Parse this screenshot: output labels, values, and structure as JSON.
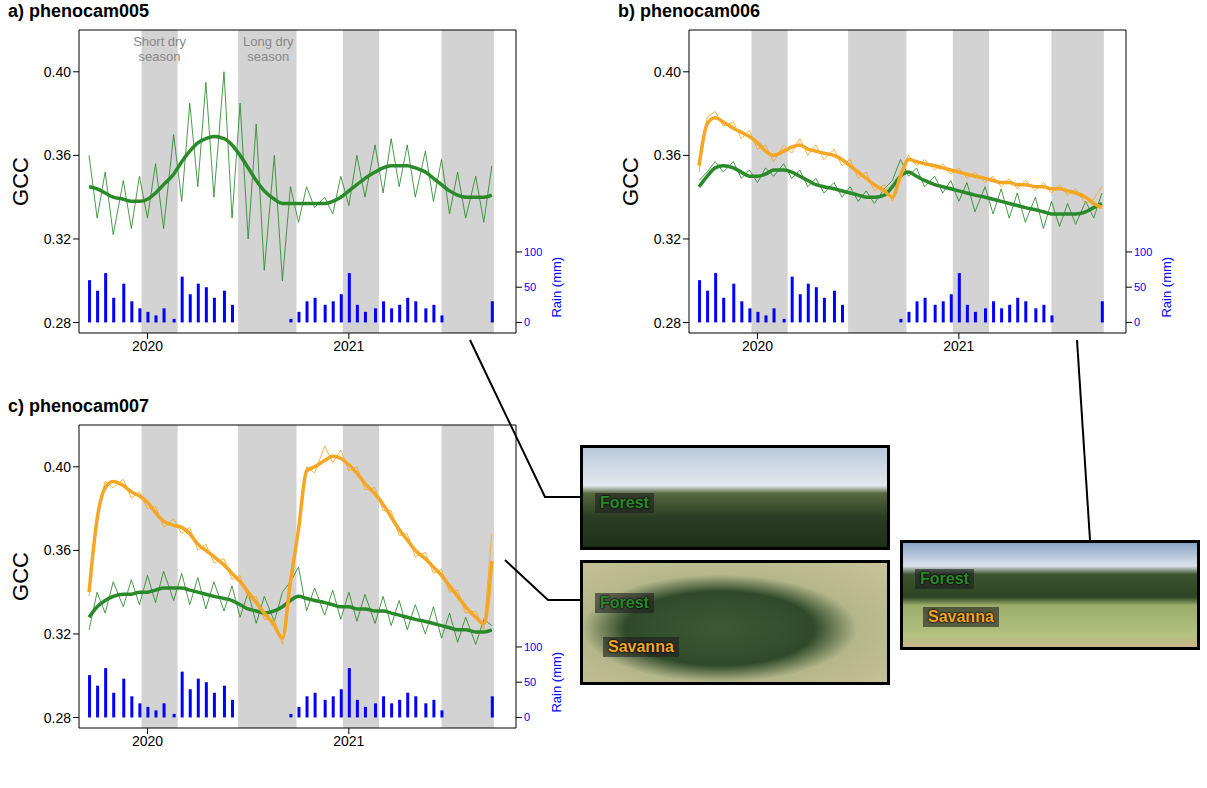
{
  "chart_data": [
    {
      "type": "line",
      "title": "a) phenocam005",
      "y_label": "GCC",
      "y2_label": "Rain (mm)",
      "x": [
        2019.71,
        2019.75,
        2019.79,
        2019.83,
        2019.88,
        2019.92,
        2019.96,
        2020,
        2020.04,
        2020.08,
        2020.13,
        2020.17,
        2020.21,
        2020.25,
        2020.29,
        2020.33,
        2020.38,
        2020.42,
        2020.46,
        2020.5,
        2020.54,
        2020.58,
        2020.63,
        2020.67,
        2020.71,
        2020.75,
        2020.79,
        2020.83,
        2020.88,
        2020.92,
        2020.96,
        2021,
        2021.04,
        2021.08,
        2021.13,
        2021.17,
        2021.21,
        2021.25,
        2021.29,
        2021.33,
        2021.38,
        2021.42,
        2021.46,
        2021.5,
        2021.54,
        2021.58,
        2021.63,
        2021.67,
        2021.71
      ],
      "xlim": [
        2019.66,
        2021.83
      ],
      "xticks": [
        2020,
        2021
      ],
      "ylim": [
        0.275,
        0.42
      ],
      "yticks": [
        0.28,
        0.32,
        0.36,
        {
          "value": 0.4,
          "label": "0.40"
        }
      ],
      "y2lim": [
        -15,
        415
      ],
      "y2ticks": [
        0,
        50,
        100
      ],
      "dry_seasons": [
        [
          2019.97,
          2020.15
        ],
        [
          2020.45,
          2020.74
        ],
        [
          2020.97,
          2021.15
        ],
        [
          2021.46,
          2021.72
        ]
      ],
      "annotations": [
        {
          "text": "Short dry season",
          "x": 2020.06
        },
        {
          "text": "Long dry season",
          "x": 2020.6
        }
      ],
      "photo_labels": [
        "Forest"
      ],
      "series": [
        {
          "name": "Forest",
          "color": "#2a8a2a",
          "values": [
            0.36,
            0.33,
            0.352,
            0.322,
            0.348,
            0.325,
            0.35,
            0.33,
            0.356,
            0.325,
            0.37,
            0.338,
            0.385,
            0.345,
            0.395,
            0.34,
            0.4,
            0.33,
            0.385,
            0.32,
            0.375,
            0.305,
            0.36,
            0.3,
            0.345,
            0.328,
            0.345,
            0.335,
            0.34,
            0.332,
            0.35,
            0.336,
            0.36,
            0.34,
            0.365,
            0.342,
            0.368,
            0.345,
            0.365,
            0.34,
            0.362,
            0.338,
            0.358,
            0.332,
            0.352,
            0.33,
            0.35,
            0.328,
            0.355
          ],
          "smooth": [
            0.345,
            0.344,
            0.342,
            0.34,
            0.339,
            0.338,
            0.338,
            0.339,
            0.342,
            0.346,
            0.351,
            0.357,
            0.362,
            0.366,
            0.368,
            0.369,
            0.368,
            0.365,
            0.36,
            0.354,
            0.348,
            0.343,
            0.339,
            0.337,
            0.337,
            0.337,
            0.337,
            0.337,
            0.337,
            0.338,
            0.34,
            0.343,
            0.346,
            0.349,
            0.352,
            0.354,
            0.355,
            0.355,
            0.355,
            0.354,
            0.352,
            0.349,
            0.346,
            0.343,
            0.341,
            0.34,
            0.34,
            0.34,
            0.341
          ]
        },
        {
          "type": "bar",
          "axis": "y2",
          "color": "#0000ff",
          "values": [
            60,
            45,
            70,
            35,
            55,
            30,
            20,
            15,
            10,
            20,
            5,
            65,
            40,
            55,
            50,
            35,
            45,
            25,
            0,
            0,
            0,
            0,
            0,
            0,
            5,
            15,
            30,
            35,
            25,
            30,
            40,
            70,
            25,
            15,
            20,
            30,
            20,
            25,
            35,
            30,
            20,
            25,
            10,
            0,
            0,
            0,
            0,
            0,
            30
          ]
        }
      ]
    },
    {
      "type": "line",
      "title": "b) phenocam006",
      "y_label": "GCC",
      "y2_label": "Rain (mm)",
      "x": [
        2019.71,
        2019.75,
        2019.79,
        2019.83,
        2019.88,
        2019.92,
        2019.96,
        2020,
        2020.04,
        2020.08,
        2020.13,
        2020.17,
        2020.21,
        2020.25,
        2020.29,
        2020.33,
        2020.38,
        2020.42,
        2020.46,
        2020.5,
        2020.54,
        2020.58,
        2020.63,
        2020.67,
        2020.71,
        2020.75,
        2020.79,
        2020.83,
        2020.88,
        2020.92,
        2020.96,
        2021,
        2021.04,
        2021.08,
        2021.13,
        2021.17,
        2021.21,
        2021.25,
        2021.29,
        2021.33,
        2021.38,
        2021.42,
        2021.46,
        2021.5,
        2021.54,
        2021.58,
        2021.63,
        2021.67,
        2021.71
      ],
      "xlim": [
        2019.66,
        2021.83
      ],
      "xticks": [
        2020,
        2021
      ],
      "ylim": [
        0.275,
        0.42
      ],
      "yticks": [
        0.28,
        0.32,
        0.36,
        {
          "value": 0.4,
          "label": "0.40"
        }
      ],
      "y2lim": [
        -15,
        415
      ],
      "y2ticks": [
        0,
        50,
        100
      ],
      "dry_seasons": [
        [
          2019.97,
          2020.15
        ],
        [
          2020.45,
          2020.74
        ],
        [
          2020.97,
          2021.15
        ],
        [
          2021.46,
          2021.72
        ]
      ],
      "photo_labels": [
        "Forest",
        "Savanna"
      ],
      "series": [
        {
          "name": "Forest",
          "color": "#2a8a2a",
          "values": [
            0.348,
            0.352,
            0.357,
            0.352,
            0.357,
            0.349,
            0.353,
            0.347,
            0.354,
            0.35,
            0.356,
            0.349,
            0.353,
            0.345,
            0.349,
            0.342,
            0.347,
            0.34,
            0.345,
            0.338,
            0.343,
            0.337,
            0.344,
            0.348,
            0.358,
            0.35,
            0.354,
            0.345,
            0.35,
            0.342,
            0.348,
            0.338,
            0.347,
            0.333,
            0.345,
            0.332,
            0.344,
            0.33,
            0.342,
            0.328,
            0.34,
            0.325,
            0.338,
            0.326,
            0.337,
            0.327,
            0.338,
            0.33,
            0.342
          ],
          "smooth": [
            0.345,
            0.35,
            0.354,
            0.355,
            0.354,
            0.352,
            0.35,
            0.35,
            0.351,
            0.353,
            0.353,
            0.352,
            0.35,
            0.348,
            0.346,
            0.345,
            0.344,
            0.343,
            0.342,
            0.341,
            0.34,
            0.34,
            0.341,
            0.345,
            0.35,
            0.352,
            0.35,
            0.348,
            0.346,
            0.345,
            0.344,
            0.343,
            0.342,
            0.341,
            0.34,
            0.339,
            0.338,
            0.337,
            0.336,
            0.335,
            0.334,
            0.333,
            0.332,
            0.332,
            0.332,
            0.332,
            0.333,
            0.335,
            0.337
          ]
        },
        {
          "name": "Savanna",
          "color": "#f5a623",
          "values": [
            0.352,
            0.378,
            0.381,
            0.374,
            0.376,
            0.368,
            0.372,
            0.363,
            0.365,
            0.357,
            0.365,
            0.361,
            0.368,
            0.36,
            0.365,
            0.358,
            0.363,
            0.355,
            0.358,
            0.349,
            0.352,
            0.343,
            0.346,
            0.338,
            0.352,
            0.36,
            0.355,
            0.358,
            0.353,
            0.356,
            0.351,
            0.354,
            0.349,
            0.352,
            0.347,
            0.35,
            0.345,
            0.349,
            0.344,
            0.348,
            0.343,
            0.347,
            0.342,
            0.346,
            0.341,
            0.344,
            0.337,
            0.339,
            0.345
          ],
          "smooth": [
            0.355,
            0.375,
            0.378,
            0.376,
            0.373,
            0.371,
            0.369,
            0.366,
            0.362,
            0.36,
            0.362,
            0.364,
            0.365,
            0.363,
            0.362,
            0.361,
            0.36,
            0.358,
            0.355,
            0.352,
            0.349,
            0.346,
            0.343,
            0.34,
            0.35,
            0.358,
            0.357,
            0.356,
            0.355,
            0.354,
            0.353,
            0.352,
            0.351,
            0.35,
            0.349,
            0.348,
            0.347,
            0.347,
            0.346,
            0.346,
            0.345,
            0.345,
            0.344,
            0.344,
            0.343,
            0.342,
            0.34,
            0.337,
            0.335
          ]
        },
        {
          "type": "bar",
          "axis": "y2",
          "color": "#0000ff",
          "values": [
            60,
            45,
            70,
            35,
            55,
            30,
            20,
            15,
            10,
            20,
            5,
            65,
            40,
            55,
            50,
            35,
            45,
            25,
            0,
            0,
            0,
            0,
            0,
            0,
            5,
            15,
            30,
            35,
            25,
            30,
            40,
            70,
            25,
            15,
            20,
            30,
            20,
            25,
            35,
            30,
            20,
            25,
            10,
            0,
            0,
            0,
            0,
            0,
            30
          ]
        }
      ]
    },
    {
      "type": "line",
      "title": "c) phenocam007",
      "y_label": "GCC",
      "y2_label": "Rain (mm)",
      "x": [
        2019.71,
        2019.75,
        2019.79,
        2019.83,
        2019.88,
        2019.92,
        2019.96,
        2020,
        2020.04,
        2020.08,
        2020.13,
        2020.17,
        2020.21,
        2020.25,
        2020.29,
        2020.33,
        2020.38,
        2020.42,
        2020.46,
        2020.5,
        2020.54,
        2020.58,
        2020.63,
        2020.67,
        2020.71,
        2020.75,
        2020.79,
        2020.83,
        2020.88,
        2020.92,
        2020.96,
        2021,
        2021.04,
        2021.08,
        2021.13,
        2021.17,
        2021.21,
        2021.25,
        2021.29,
        2021.33,
        2021.38,
        2021.42,
        2021.46,
        2021.5,
        2021.54,
        2021.58,
        2021.63,
        2021.67,
        2021.71
      ],
      "xlim": [
        2019.66,
        2021.83
      ],
      "xticks": [
        2020,
        2021
      ],
      "ylim": [
        0.275,
        0.42
      ],
      "yticks": [
        0.28,
        0.32,
        0.36,
        {
          "value": 0.4,
          "label": "0.40"
        }
      ],
      "y2lim": [
        -15,
        415
      ],
      "y2ticks": [
        0,
        50,
        100
      ],
      "dry_seasons": [
        [
          2019.97,
          2020.15
        ],
        [
          2020.45,
          2020.74
        ],
        [
          2020.97,
          2021.15
        ],
        [
          2021.46,
          2021.72
        ]
      ],
      "photo_labels": [
        "Forest",
        "Savanna"
      ],
      "series": [
        {
          "name": "Forest",
          "color": "#2a8a2a",
          "values": [
            0.322,
            0.34,
            0.33,
            0.345,
            0.333,
            0.346,
            0.334,
            0.348,
            0.335,
            0.35,
            0.336,
            0.349,
            0.334,
            0.347,
            0.332,
            0.345,
            0.331,
            0.343,
            0.328,
            0.34,
            0.325,
            0.338,
            0.326,
            0.34,
            0.345,
            0.352,
            0.331,
            0.342,
            0.329,
            0.341,
            0.327,
            0.34,
            0.326,
            0.339,
            0.325,
            0.338,
            0.324,
            0.336,
            0.322,
            0.334,
            0.32,
            0.333,
            0.318,
            0.33,
            0.316,
            0.328,
            0.315,
            0.327,
            0.324
          ],
          "smooth": [
            0.328,
            0.333,
            0.336,
            0.338,
            0.339,
            0.339,
            0.34,
            0.34,
            0.341,
            0.342,
            0.342,
            0.342,
            0.341,
            0.34,
            0.339,
            0.338,
            0.337,
            0.336,
            0.334,
            0.332,
            0.331,
            0.33,
            0.331,
            0.333,
            0.336,
            0.338,
            0.337,
            0.336,
            0.335,
            0.334,
            0.333,
            0.333,
            0.332,
            0.332,
            0.331,
            0.331,
            0.33,
            0.329,
            0.328,
            0.327,
            0.326,
            0.325,
            0.324,
            0.323,
            0.322,
            0.322,
            0.321,
            0.321,
            0.322
          ]
        },
        {
          "name": "Savanna",
          "color": "#f5a623",
          "values": [
            0.338,
            0.378,
            0.393,
            0.39,
            0.394,
            0.385,
            0.388,
            0.38,
            0.381,
            0.371,
            0.375,
            0.368,
            0.371,
            0.36,
            0.363,
            0.354,
            0.356,
            0.346,
            0.348,
            0.337,
            0.338,
            0.327,
            0.327,
            0.315,
            0.348,
            0.372,
            0.4,
            0.397,
            0.41,
            0.402,
            0.408,
            0.398,
            0.4,
            0.389,
            0.39,
            0.379,
            0.379,
            0.367,
            0.368,
            0.357,
            0.359,
            0.349,
            0.351,
            0.34,
            0.341,
            0.33,
            0.331,
            0.322,
            0.368
          ],
          "smooth": [
            0.34,
            0.375,
            0.39,
            0.393,
            0.391,
            0.388,
            0.386,
            0.383,
            0.378,
            0.374,
            0.372,
            0.371,
            0.368,
            0.363,
            0.36,
            0.357,
            0.353,
            0.349,
            0.345,
            0.34,
            0.335,
            0.33,
            0.324,
            0.318,
            0.345,
            0.37,
            0.398,
            0.4,
            0.403,
            0.405,
            0.404,
            0.401,
            0.397,
            0.392,
            0.387,
            0.382,
            0.376,
            0.37,
            0.365,
            0.36,
            0.356,
            0.352,
            0.348,
            0.343,
            0.338,
            0.333,
            0.328,
            0.325,
            0.355
          ]
        },
        {
          "type": "bar",
          "axis": "y2",
          "color": "#0000ff",
          "values": [
            60,
            45,
            70,
            35,
            55,
            30,
            20,
            15,
            10,
            20,
            5,
            65,
            40,
            55,
            50,
            35,
            45,
            25,
            0,
            0,
            0,
            0,
            0,
            0,
            5,
            15,
            30,
            35,
            25,
            30,
            40,
            70,
            25,
            15,
            20,
            30,
            20,
            25,
            35,
            30,
            20,
            25,
            10,
            0,
            0,
            0,
            0,
            0,
            30
          ]
        }
      ]
    }
  ]
}
